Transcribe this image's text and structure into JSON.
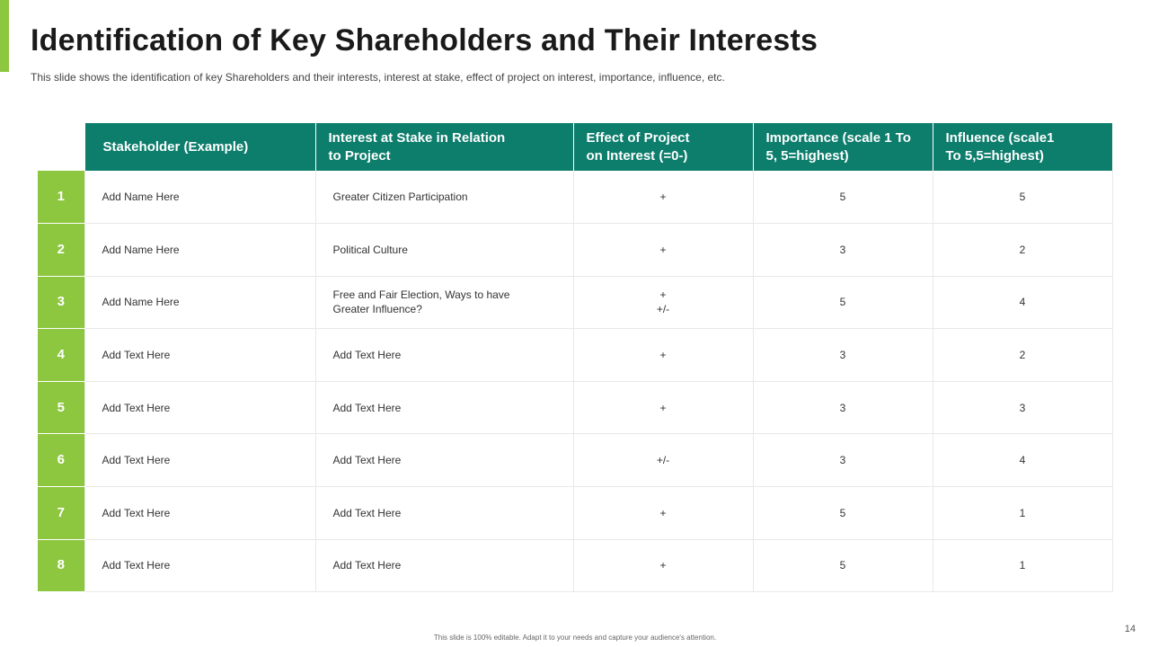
{
  "slide": {
    "title": "Identification of Key Shareholders and Their Interests",
    "subtitle": "This slide shows the identification of key Shareholders  and their interests, interest at stake, effect of project on interest, importance, influence, etc.",
    "footer": "This slide is 100% editable. Adapt it to your needs and capture your audience's attention.",
    "page_number": "14",
    "colors": {
      "accent_green": "#8dc63f",
      "header_teal": "#0d7d6c"
    }
  },
  "table": {
    "headers": [
      [
        "Stakeholder (Example)"
      ],
      [
        "Interest  at Stake in Relation",
        "to Project"
      ],
      [
        "Effect of Project",
        "on Interest  (=0-)"
      ],
      [
        "Importance (scale 1 To",
        "5, 5=highest)"
      ],
      [
        "Influence (scale1",
        "To 5,5=highest)"
      ]
    ],
    "rows": [
      {
        "num": "1",
        "name": "Add Name Here",
        "interest": [
          "Greater Citizen Participation"
        ],
        "effect": [
          "+"
        ],
        "importance": "5",
        "influence": "5"
      },
      {
        "num": "2",
        "name": "Add Name Here",
        "interest": [
          "Political Culture"
        ],
        "effect": [
          "+"
        ],
        "importance": "3",
        "influence": "2"
      },
      {
        "num": "3",
        "name": "Add Name Here",
        "interest": [
          "Free and Fair Election, Ways to have",
          "Greater  Influence?"
        ],
        "effect": [
          "+",
          "+/-"
        ],
        "importance": "5",
        "influence": "4"
      },
      {
        "num": "4",
        "name": "Add Text Here",
        "interest": [
          "Add Text Here"
        ],
        "effect": [
          "+"
        ],
        "importance": "3",
        "influence": "2"
      },
      {
        "num": "5",
        "name": "Add Text Here",
        "interest": [
          "Add Text Here"
        ],
        "effect": [
          "+"
        ],
        "importance": "3",
        "influence": "3"
      },
      {
        "num": "6",
        "name": "Add Text Here",
        "interest": [
          "Add Text Here"
        ],
        "effect": [
          "+/-"
        ],
        "importance": "3",
        "influence": "4"
      },
      {
        "num": "7",
        "name": "Add Text Here",
        "interest": [
          "Add Text Here"
        ],
        "effect": [
          "+"
        ],
        "importance": "5",
        "influence": "1"
      },
      {
        "num": "8",
        "name": "Add Text Here",
        "interest": [
          "Add Text Here"
        ],
        "effect": [
          "+"
        ],
        "importance": "5",
        "influence": "1"
      }
    ]
  }
}
